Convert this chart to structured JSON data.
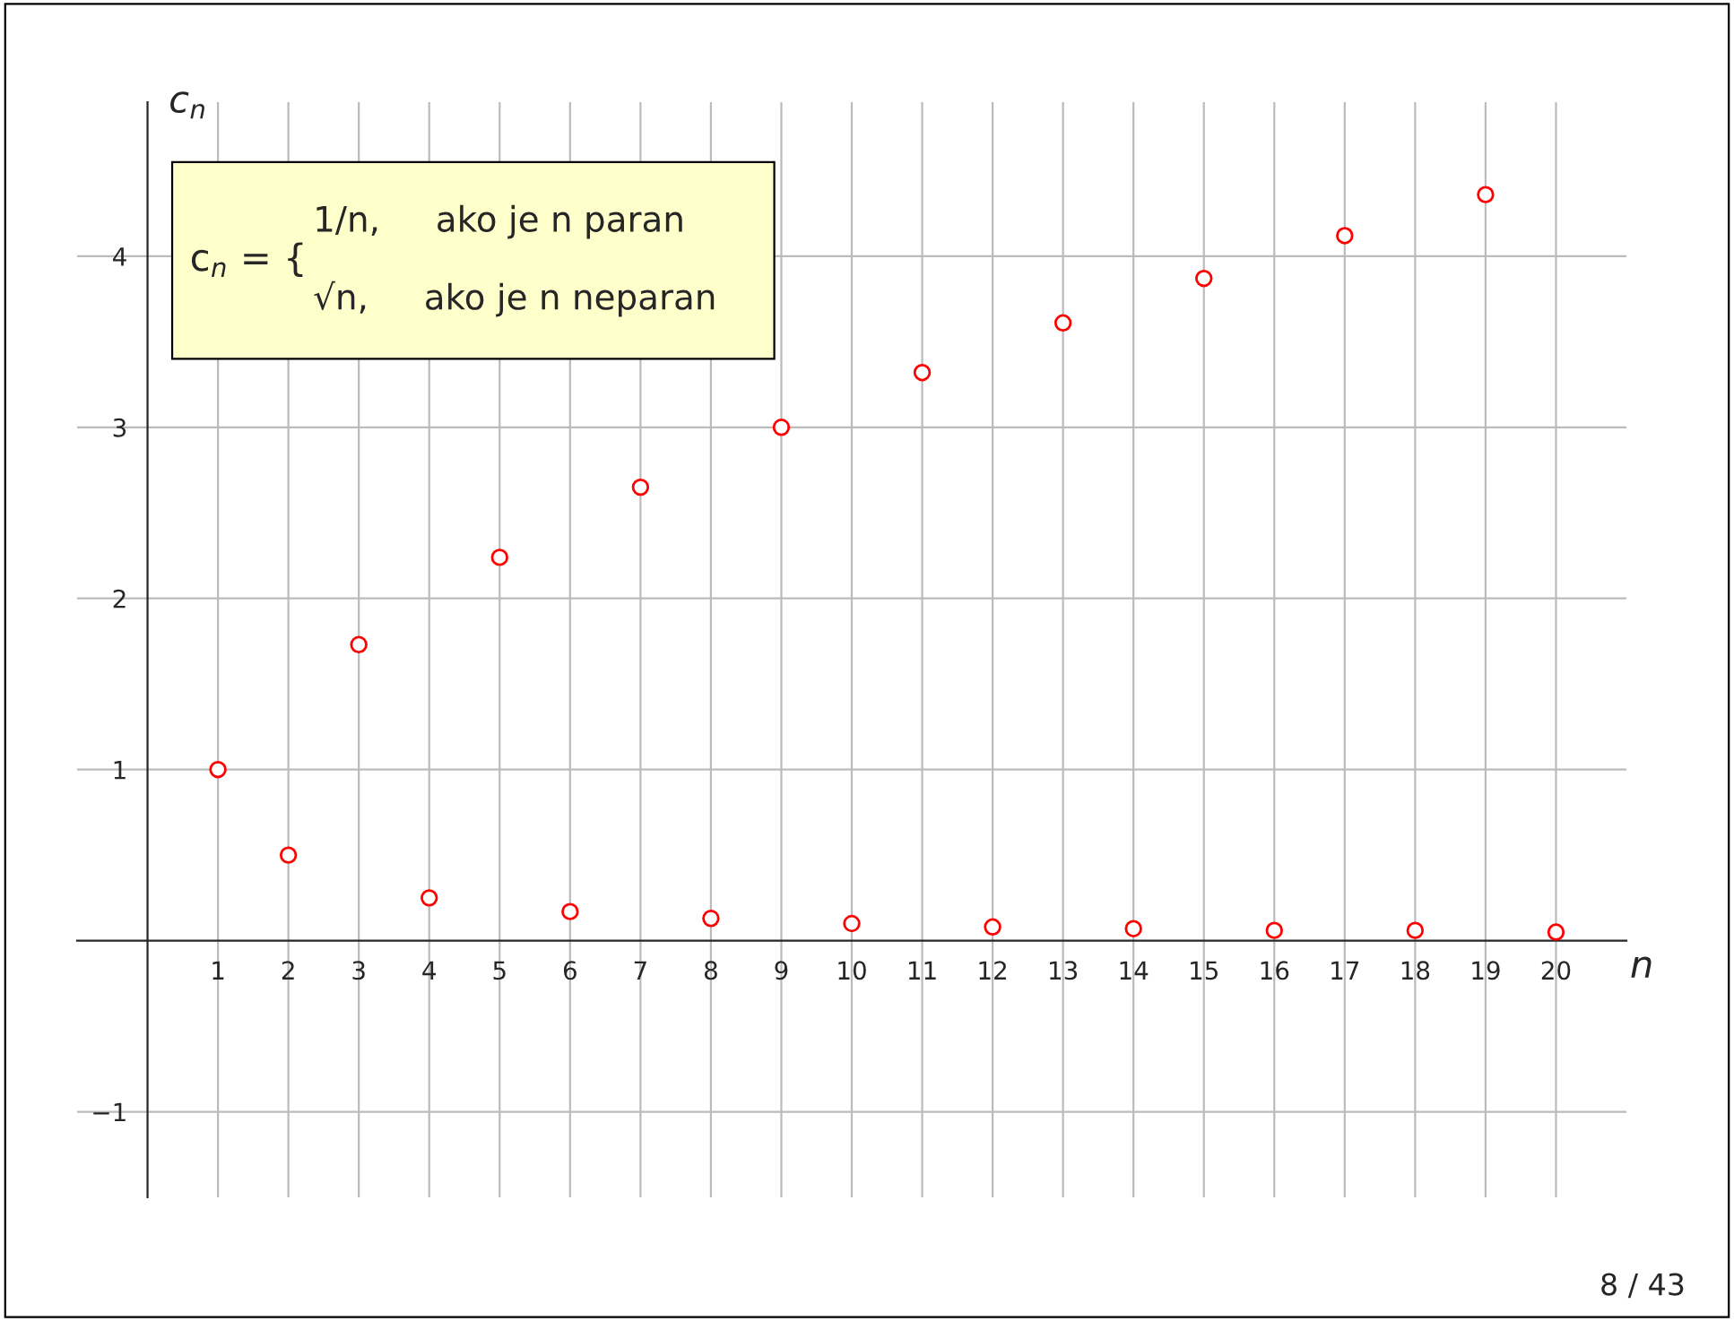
{
  "chart_data": {
    "type": "scatter",
    "x": [
      1,
      2,
      3,
      4,
      5,
      6,
      7,
      8,
      9,
      10,
      11,
      12,
      13,
      14,
      15,
      16,
      17,
      18,
      19,
      20
    ],
    "series": [
      {
        "color": "#ff0000",
        "values": [
          1,
          0.5,
          1.73,
          0.25,
          2.24,
          0.17,
          2.65,
          0.13,
          3,
          0.1,
          3.32,
          0.08,
          3.61,
          0.07,
          3.87,
          0.06,
          4.12,
          0.06,
          4.36,
          0.05
        ]
      }
    ],
    "xlabel": "n",
    "ylabel": "c$_{n}$",
    "xlim": [
      -1,
      21
    ],
    "ylim": [
      -1.5,
      4.9
    ],
    "xticks": [
      1,
      2,
      3,
      4,
      5,
      6,
      7,
      8,
      9,
      10,
      11,
      12,
      13,
      14,
      15,
      16,
      17,
      18,
      19,
      20
    ],
    "yticks": [
      {
        "value": -1,
        "label": "−1"
      },
      1,
      2,
      3,
      4
    ],
    "grid": true,
    "marker": "circle",
    "annotations": [
      "c$_{n}$ = {",
      "1/n,     ako je n paran",
      "√n,     ako je n neparan",
      "8 / 43"
    ]
  }
}
